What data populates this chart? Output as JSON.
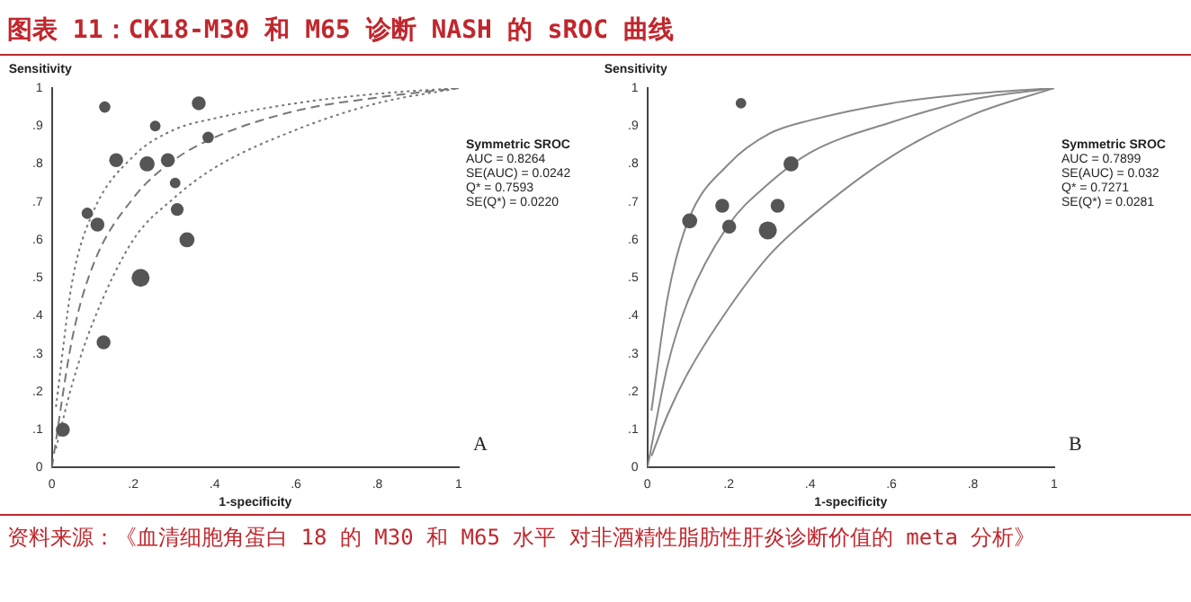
{
  "chart_data": [
    {
      "type": "bubble",
      "title": "图表 11：CK18-M30 和 M65 诊断 NASH 的 sROC 曲线",
      "xlabel": "1-specificity",
      "ylabel": "Sensitivity",
      "xlim": [
        0,
        1
      ],
      "ylim": [
        0,
        1
      ],
      "xticks": [
        {
          "value": 0,
          "label": "0"
        },
        {
          "value": 0.2,
          "label": ".2"
        },
        {
          "value": 0.4,
          "label": ".4"
        },
        {
          "value": 0.6,
          "label": ".6"
        },
        {
          "value": 0.8,
          "label": ".8"
        },
        1
      ],
      "yticks": [
        {
          "value": 0,
          "label": "0"
        },
        {
          "value": 0.1,
          "label": ".1"
        },
        {
          "value": 0.2,
          "label": ".2"
        },
        {
          "value": 0.3,
          "label": ".3"
        },
        {
          "value": 0.4,
          "label": ".4"
        },
        {
          "value": 0.5,
          "label": ".5"
        },
        {
          "value": 0.6,
          "label": ".6"
        },
        {
          "value": 0.7,
          "label": ".7"
        },
        {
          "value": 0.8,
          "label": ".8"
        },
        {
          "value": 0.9,
          "label": ".9"
        },
        1
      ],
      "annotations": [
        "Symmetric SROC",
        "AUC = 0.8264",
        "SE(AUC) = 0.0242",
        "Q* = 0.7593",
        "SE(Q*) = 0.0220",
        "A"
      ],
      "series": [
        {
          "type": "bubble",
          "color": "#555555",
          "x": [
            0.027,
            0.13,
            0.087,
            0.112,
            0.158,
            0.127,
            0.218,
            0.234,
            0.254,
            0.285,
            0.303,
            0.308,
            0.332,
            0.361,
            0.384
          ],
          "values": [
            0.1,
            0.95,
            0.67,
            0.64,
            0.81,
            0.33,
            0.5,
            0.8,
            0.9,
            0.81,
            0.75,
            0.68,
            0.6,
            0.96,
            0.87
          ],
          "sizes": [
            0.6,
            0.4,
            0.4,
            0.6,
            0.6,
            0.6,
            1,
            0.7,
            0.35,
            0.6,
            0.35,
            0.5,
            0.7,
            0.6,
            0.4
          ]
        },
        {
          "type": "line",
          "color": "#777777",
          "line_style": "dotted",
          "x": [
            0.01,
            0.05,
            0.1,
            0.2,
            0.3,
            0.4,
            0.6,
            0.8,
            1
          ],
          "values": [
            0.16,
            0.49,
            0.67,
            0.82,
            0.89,
            0.92,
            0.96,
            0.985,
            1
          ]
        },
        {
          "type": "line",
          "color": "#777777",
          "line_style": "dashed",
          "x": [
            0,
            0.05,
            0.1,
            0.2,
            0.3,
            0.4,
            0.6,
            0.8,
            1
          ],
          "values": [
            0,
            0.34,
            0.53,
            0.71,
            0.81,
            0.87,
            0.94,
            0.975,
            1
          ]
        },
        {
          "type": "line",
          "color": "#777777",
          "line_style": "dotted",
          "x": [
            0.01,
            0.05,
            0.1,
            0.2,
            0.3,
            0.4,
            0.6,
            0.8,
            1
          ],
          "values": [
            0.05,
            0.22,
            0.38,
            0.6,
            0.71,
            0.79,
            0.89,
            0.96,
            1
          ]
        }
      ]
    },
    {
      "type": "bubble",
      "xlabel": "1-specificity",
      "ylabel": "Sensitivity",
      "xlim": [
        0,
        1
      ],
      "ylim": [
        0,
        1
      ],
      "xticks": [
        {
          "value": 0,
          "label": "0"
        },
        {
          "value": 0.2,
          "label": ".2"
        },
        {
          "value": 0.4,
          "label": ".4"
        },
        {
          "value": 0.6,
          "label": ".6"
        },
        {
          "value": 0.8,
          "label": ".8"
        },
        1
      ],
      "yticks": [
        {
          "value": 0,
          "label": "0"
        },
        {
          "value": 0.1,
          "label": ".1"
        },
        {
          "value": 0.2,
          "label": ".2"
        },
        {
          "value": 0.3,
          "label": ".3"
        },
        {
          "value": 0.4,
          "label": ".4"
        },
        {
          "value": 0.5,
          "label": ".5"
        },
        {
          "value": 0.6,
          "label": ".6"
        },
        {
          "value": 0.7,
          "label": ".7"
        },
        {
          "value": 0.8,
          "label": ".8"
        },
        {
          "value": 0.9,
          "label": ".9"
        },
        1
      ],
      "annotations": [
        "Symmetric SROC",
        "AUC = 0.7899",
        "SE(AUC) = 0.032",
        "Q* = 0.7271",
        "SE(Q*) = 0.0281",
        "B",
        "资料来源：《血清细胞角蛋白 18 的 M30 和 M65 水平 对非酒精性脂肪性肝炎诊断价值的 meta 分析》"
      ],
      "series": [
        {
          "type": "bubble",
          "color": "#555555",
          "x": [
            0.104,
            0.184,
            0.201,
            0.23,
            0.296,
            0.32,
            0.353
          ],
          "values": [
            0.65,
            0.69,
            0.635,
            0.96,
            0.625,
            0.69,
            0.8
          ],
          "sizes": [
            0.7,
            0.6,
            0.6,
            0.35,
            1,
            0.6,
            0.7
          ]
        },
        {
          "type": "line",
          "color": "#888888",
          "line_style": "solid",
          "x": [
            0.01,
            0.05,
            0.1,
            0.2,
            0.3,
            0.4,
            0.6,
            0.8,
            1
          ],
          "values": [
            0.15,
            0.45,
            0.65,
            0.8,
            0.88,
            0.915,
            0.96,
            0.985,
            1
          ]
        },
        {
          "type": "line",
          "color": "#888888",
          "line_style": "solid",
          "x": [
            0,
            0.05,
            0.1,
            0.2,
            0.3,
            0.4,
            0.6,
            0.8,
            1
          ],
          "values": [
            0,
            0.27,
            0.44,
            0.64,
            0.75,
            0.83,
            0.91,
            0.97,
            1
          ]
        },
        {
          "type": "line",
          "color": "#888888",
          "line_style": "solid",
          "x": [
            0.01,
            0.05,
            0.1,
            0.2,
            0.3,
            0.4,
            0.6,
            0.8,
            1
          ],
          "values": [
            0.03,
            0.14,
            0.25,
            0.42,
            0.56,
            0.66,
            0.82,
            0.93,
            1
          ]
        }
      ]
    }
  ]
}
